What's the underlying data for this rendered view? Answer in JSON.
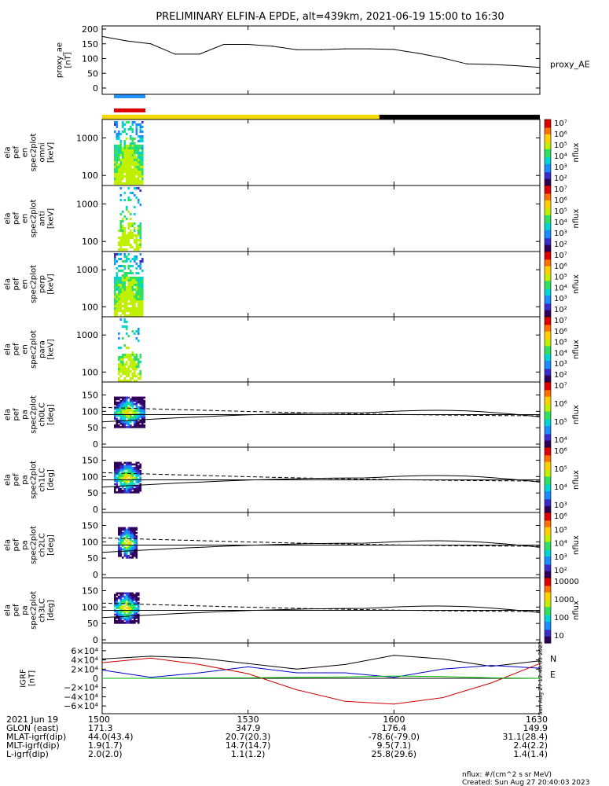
{
  "title": "PRELIMINARY ELFIN-A EPDE, alt=439km, 2021-06-19 15:00 to 16:30",
  "chart_data": [
    {
      "type": "line",
      "id": "proxy_ae",
      "ylabel_lines": [
        "proxy_ae",
        "[nT]"
      ],
      "legend": "proxy_AE",
      "ylim": [
        0,
        200
      ],
      "yticks": [
        0,
        50,
        100,
        150,
        200
      ],
      "x": [
        "1500",
        "1505",
        "1510",
        "1515",
        "1520",
        "1525",
        "1530",
        "1535",
        "1540",
        "1545",
        "1550",
        "1555",
        "1600",
        "1605",
        "1610",
        "1615",
        "1620",
        "1625",
        "1630"
      ],
      "values": [
        175,
        160,
        150,
        115,
        115,
        148,
        148,
        142,
        130,
        130,
        133,
        133,
        131,
        118,
        102,
        82,
        80,
        76,
        70
      ]
    },
    {
      "type": "heatmap",
      "id": "spec_omni",
      "ylabel_lines": [
        "ela",
        "pef",
        "en",
        "spec2plot",
        "omni",
        "[keV]"
      ],
      "yscale": "log",
      "yticks": [
        100,
        1000
      ],
      "ytick_labels": [
        "100",
        "1000"
      ],
      "zlabel": "nflux",
      "zticks": [
        "10⁷",
        "10⁶",
        "10⁵",
        "10⁴",
        "10³",
        "10²"
      ]
    },
    {
      "type": "heatmap",
      "id": "spec_anti",
      "ylabel_lines": [
        "ela",
        "pef",
        "en",
        "spec2plot",
        "anti",
        "[keV]"
      ],
      "yscale": "log",
      "yticks": [
        100,
        1000
      ],
      "ytick_labels": [
        "100",
        "1000"
      ],
      "zlabel": "nflux",
      "zticks": [
        "10⁷",
        "10⁶",
        "10⁵",
        "10⁴",
        "10³",
        "10²"
      ]
    },
    {
      "type": "heatmap",
      "id": "spec_perp",
      "ylabel_lines": [
        "ela",
        "pef",
        "en",
        "spec2plot",
        "perp",
        "[keV]"
      ],
      "yscale": "log",
      "yticks": [
        100,
        1000
      ],
      "ytick_labels": [
        "100",
        "1000"
      ],
      "zlabel": "nflux",
      "zticks": [
        "10⁷",
        "10⁶",
        "10⁵",
        "10⁴",
        "10³",
        "10²"
      ]
    },
    {
      "type": "heatmap",
      "id": "spec_para",
      "ylabel_lines": [
        "ela",
        "pef",
        "en",
        "spec2plot",
        "para",
        "[keV]"
      ],
      "yscale": "log",
      "yticks": [
        100,
        1000
      ],
      "ytick_labels": [
        "100",
        "1000"
      ],
      "zlabel": "nflux",
      "zticks": [
        "10⁷",
        "10⁶",
        "10⁵",
        "10⁴",
        "10³",
        "10²"
      ]
    },
    {
      "type": "heatmap",
      "id": "pa_ch0",
      "ylabel_lines": [
        "ela",
        "pef",
        "pa",
        "spec2plot",
        "ch0LC",
        "[deg]"
      ],
      "ylim": [
        0,
        180
      ],
      "yticks": [
        0,
        50,
        100,
        150
      ],
      "zlabel": "nflux",
      "zticks": [
        "10⁷",
        "10⁶",
        "10⁵",
        "10⁴"
      ]
    },
    {
      "type": "heatmap",
      "id": "pa_ch1",
      "ylabel_lines": [
        "ela",
        "pef",
        "pa",
        "spec2plot",
        "ch1LC",
        "[deg]"
      ],
      "ylim": [
        0,
        180
      ],
      "yticks": [
        0,
        50,
        100,
        150
      ],
      "zlabel": "nflux",
      "zticks": [
        "10⁶",
        "10⁵",
        "10⁴",
        "10³"
      ]
    },
    {
      "type": "heatmap",
      "id": "pa_ch2",
      "ylabel_lines": [
        "ela",
        "pef",
        "pa",
        "spec2plot",
        "ch2LC",
        "[deg]"
      ],
      "ylim": [
        0,
        180
      ],
      "yticks": [
        0,
        50,
        100,
        150
      ],
      "zlabel": "nflux",
      "zticks": [
        "10⁶",
        "10⁵",
        "10⁴",
        "10³",
        "10²"
      ]
    },
    {
      "type": "heatmap",
      "id": "pa_ch3",
      "ylabel_lines": [
        "ela",
        "pef",
        "pa",
        "spec2plot",
        "ch3LC",
        "[deg]"
      ],
      "ylim": [
        0,
        180
      ],
      "yticks": [
        0,
        50,
        100,
        150
      ],
      "zlabel": "nflux",
      "zticks": [
        "10000",
        "1000",
        "100",
        "10"
      ]
    },
    {
      "type": "line",
      "id": "igrf",
      "ylabel_lines": [
        "IGRF",
        "[nT]"
      ],
      "ylim": [
        -70000,
        70000
      ],
      "yticks": [
        -60000,
        -40000,
        -20000,
        0,
        20000,
        40000,
        60000
      ],
      "ytick_labels": [
        "−6×10⁴",
        "−4×10⁴",
        "−2×10⁴",
        "0",
        "2×10⁴",
        "4×10⁴",
        "6×10⁴"
      ],
      "legend": [
        "N",
        "E"
      ],
      "legend_colors": [
        "#cc0000",
        "#00bb00"
      ],
      "x": [
        "1500",
        "1510",
        "1520",
        "1530",
        "1540",
        "1550",
        "1600",
        "1610",
        "1620",
        "1630"
      ],
      "series": [
        {
          "color": "#000000",
          "values": [
            42000,
            48000,
            44000,
            32000,
            20000,
            30000,
            50000,
            42000,
            26000,
            38000
          ]
        },
        {
          "color": "#0000cc",
          "values": [
            18000,
            2000,
            12000,
            25000,
            12000,
            12000,
            2000,
            20000,
            28000,
            22000
          ]
        },
        {
          "color": "#cc0000",
          "values": [
            34000,
            44000,
            30000,
            10000,
            -25000,
            -50000,
            -56000,
            -42000,
            -10000,
            32000
          ]
        },
        {
          "color": "#00bb00",
          "values": [
            0,
            0,
            1000,
            1000,
            2000,
            3000,
            5000,
            4000,
            1000,
            0
          ]
        }
      ]
    }
  ],
  "status_bar": {
    "segments": [
      "yellow",
      "black"
    ],
    "bar_colors": [
      "#f4d800",
      "#000000"
    ],
    "legend_colors": [
      "#1e90ff",
      "#dd0000"
    ]
  },
  "xaxis": {
    "ticks": [
      "1500",
      "1530",
      "1600",
      "1630"
    ],
    "row_labels": [
      "2021 Jun 19",
      "GLON (east)",
      "MLAT-igrf(dip)",
      "MLT-igrf(dip)",
      "L-igrf(dip)"
    ],
    "rows": [
      [
        "1500",
        "1530",
        "1600",
        "1630"
      ],
      [
        "171.3",
        "347.9",
        "176.4",
        "149.9"
      ],
      [
        "44.0(43.4)",
        "20.7(20.3)",
        "-78.6(-79.0)",
        "31.1(28.4)"
      ],
      [
        "1.9(1.7)",
        "14.7(14.7)",
        "9.5(7.1)",
        "2.4(2.2)"
      ],
      [
        "2.0(2.0)",
        "1.1(1.2)",
        "25.8(29.6)",
        "1.4(1.4)"
      ]
    ]
  },
  "footer": {
    "units": "nflux: #/(cm^2 s sr MeV)",
    "created": "Created: Sun Aug 27 20:40:03 2023",
    "stamp": "Sun Aug 27 12:40:03 2023"
  }
}
